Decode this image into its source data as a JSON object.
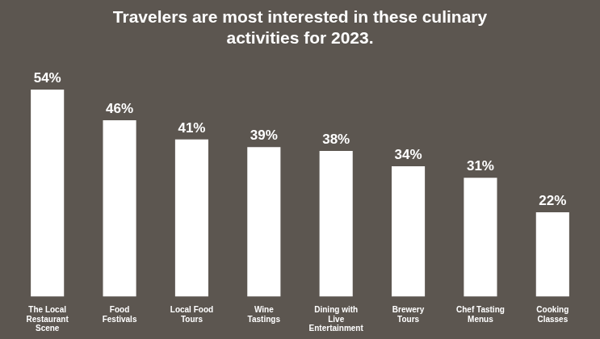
{
  "chart_data": {
    "type": "bar",
    "title": "Travelers are most interested in these culinary activities for 2023.",
    "categories": [
      "The Local Restaurant Scene",
      "Food Festivals",
      "Local Food Tours",
      "Wine Tastings",
      "Dining with Live Entertainment",
      "Brewery Tours",
      "Chef Tasting Menus",
      "Cooking Classes"
    ],
    "values": [
      54,
      46,
      41,
      39,
      38,
      34,
      31,
      22
    ],
    "value_labels": [
      "54%",
      "46%",
      "41%",
      "39%",
      "38%",
      "34%",
      "31%",
      "22%"
    ],
    "color": "#ffffff",
    "ylim": [
      0,
      60
    ],
    "grid": false,
    "data_labels": true,
    "tick_labels": "x"
  }
}
